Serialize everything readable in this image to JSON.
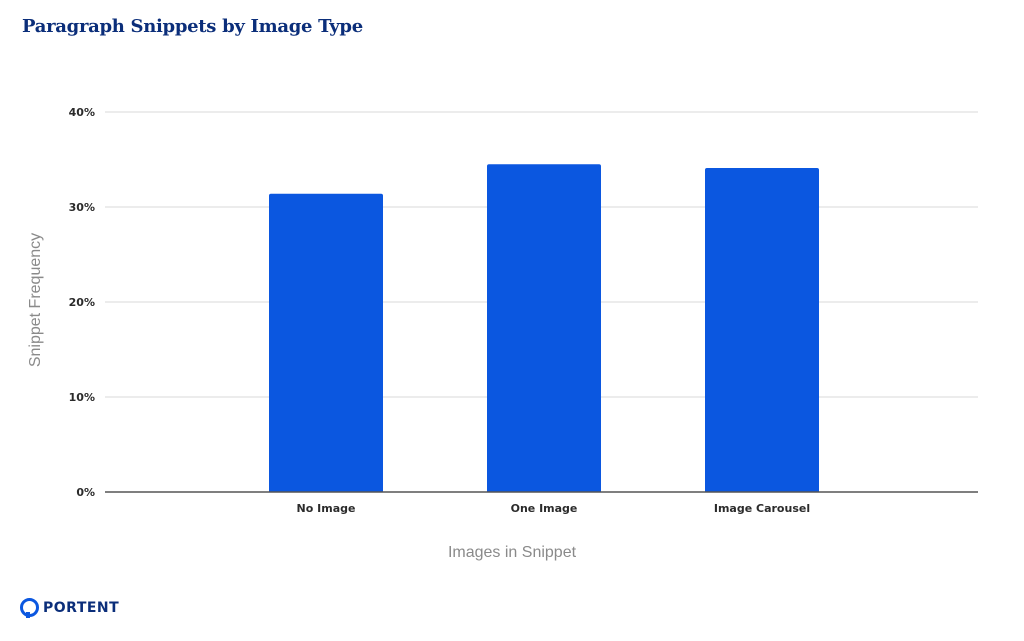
{
  "header": {
    "title": "Paragraph Snippets by Image Type"
  },
  "brand": {
    "logo_text": "PORTENT",
    "logo_icon": "portent-ring-icon"
  },
  "colors": {
    "bar": "#0b57e0",
    "title": "#0b2e7a",
    "grid": "#d9d9d9",
    "axis": "#555555"
  },
  "chart_data": {
    "type": "bar",
    "title": "Paragraph Snippets by Image Type",
    "categories": [
      "No Image",
      "One Image",
      "Image Carousel"
    ],
    "series": [
      {
        "values": [
          31.4,
          34.5,
          34.1
        ]
      }
    ],
    "xlabel": "Images in Snippet",
    "ylabel": "Snippet Frequency",
    "ylim": [
      0,
      40
    ],
    "yticks": [
      "0%",
      "10%",
      "20%",
      "30%",
      "40%"
    ],
    "grid": true,
    "legend": "none"
  }
}
